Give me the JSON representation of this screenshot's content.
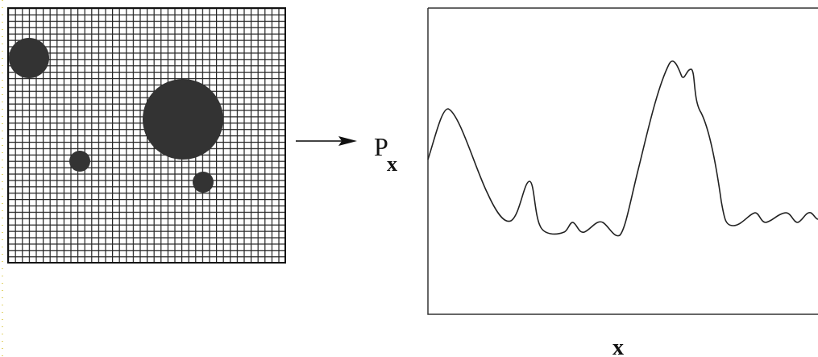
{
  "signal_label": {
    "symbol": "P",
    "subscript": "x"
  },
  "axis_label": "x"
}
